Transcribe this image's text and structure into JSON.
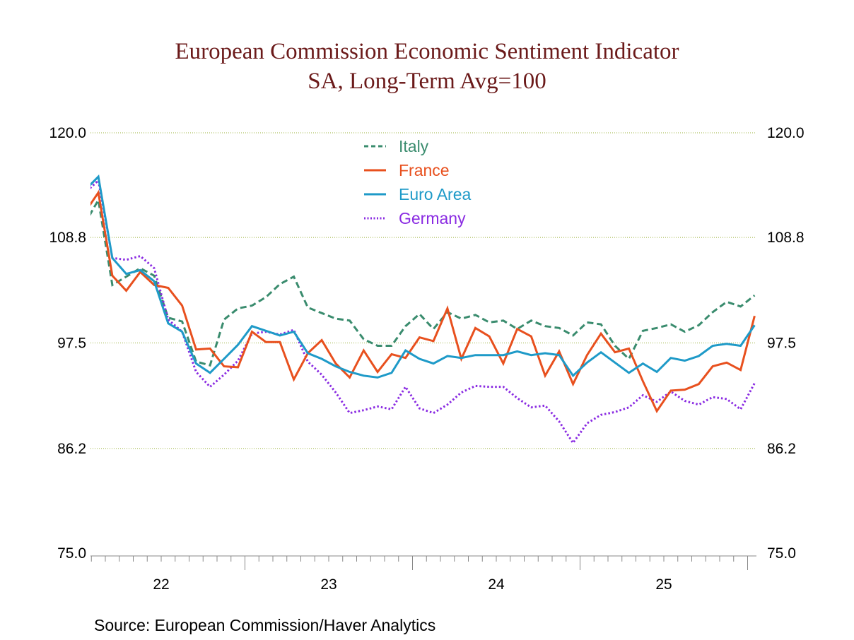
{
  "chart_data": {
    "type": "line",
    "title": "European Commission Economic Sentiment Indicator",
    "subtitle": "SA, Long-Term Avg=100",
    "xlabel": "",
    "ylabel": "",
    "ylim": [
      75.0,
      120.0
    ],
    "yticks": [
      "75.0",
      "86.2",
      "97.5",
      "108.8",
      "120.0"
    ],
    "xticks": [
      "22",
      "23",
      "24",
      "25"
    ],
    "grid": true,
    "legend_position": "top-center",
    "x": [
      "2022-01",
      "2022-02",
      "2022-03",
      "2022-04",
      "2022-05",
      "2022-06",
      "2022-07",
      "2022-08",
      "2022-09",
      "2022-10",
      "2022-11",
      "2022-12",
      "2023-01",
      "2023-02",
      "2023-03",
      "2023-04",
      "2023-05",
      "2023-06",
      "2023-07",
      "2023-08",
      "2023-09",
      "2023-10",
      "2023-11",
      "2023-12",
      "2024-01",
      "2024-02",
      "2024-03",
      "2024-04",
      "2024-05",
      "2024-06",
      "2024-07",
      "2024-08",
      "2024-09",
      "2024-10",
      "2024-11",
      "2024-12",
      "2025-01",
      "2025-02",
      "2025-03",
      "2025-04",
      "2025-05",
      "2025-06",
      "2025-07",
      "2025-08",
      "2025-09",
      "2025-10",
      "2025-11",
      "2025-12",
      "2026-01"
    ],
    "series": [
      {
        "name": "Italy",
        "color": "#3a8c6e",
        "style": "dashed",
        "values": [
          110.2,
          112.8,
          103.7,
          104.6,
          105.5,
          104.7,
          100.2,
          99.8,
          95.5,
          95.1,
          100.0,
          101.2,
          101.5,
          102.4,
          103.8,
          104.6,
          101.3,
          100.7,
          100.1,
          99.9,
          97.9,
          97.2,
          97.2,
          99.3,
          100.6,
          99.0,
          100.8,
          100.1,
          100.5,
          99.7,
          99.9,
          99.0,
          99.9,
          99.3,
          99.1,
          98.3,
          99.7,
          99.5,
          97.2,
          95.8,
          98.8,
          99.1,
          99.5,
          98.7,
          99.4,
          100.8,
          101.9,
          101.4,
          102.6
        ]
      },
      {
        "name": "France",
        "color": "#e8501e",
        "style": "solid",
        "values": [
          111.4,
          113.6,
          104.7,
          103.1,
          105.1,
          103.7,
          103.4,
          101.5,
          96.8,
          96.9,
          95.0,
          94.9,
          98.7,
          97.6,
          97.6,
          93.6,
          96.4,
          97.8,
          95.3,
          93.8,
          96.7,
          94.4,
          96.3,
          95.9,
          98.1,
          97.7,
          101.2,
          95.8,
          99.1,
          98.2,
          95.3,
          99.0,
          98.2,
          94.0,
          96.6,
          93.1,
          96.2,
          98.5,
          96.5,
          96.9,
          93.4,
          90.2,
          92.4,
          92.5,
          93.1,
          95.0,
          95.4,
          94.6,
          100.4
        ]
      },
      {
        "name": "Euro Area",
        "color": "#1e9ac8",
        "style": "solid",
        "values": [
          113.8,
          115.3,
          106.6,
          104.9,
          105.3,
          104.1,
          99.6,
          98.7,
          95.3,
          94.3,
          95.8,
          97.3,
          99.3,
          98.8,
          98.3,
          98.7,
          96.4,
          95.8,
          95.0,
          94.4,
          94.0,
          93.8,
          94.3,
          96.7,
          95.8,
          95.3,
          96.1,
          95.9,
          96.2,
          96.2,
          96.2,
          96.6,
          96.2,
          96.4,
          96.2,
          94.0,
          95.4,
          96.5,
          95.4,
          94.3,
          95.3,
          94.4,
          95.9,
          95.6,
          96.1,
          97.2,
          97.4,
          97.2,
          99.4
        ]
      },
      {
        "name": "Germany",
        "color": "#8a2be2",
        "style": "dotted",
        "values": [
          113.5,
          114.9,
          106.6,
          106.4,
          106.8,
          105.5,
          100.0,
          98.7,
          94.4,
          92.8,
          94.1,
          95.6,
          98.5,
          98.7,
          98.4,
          98.9,
          95.5,
          94.1,
          92.2,
          90.0,
          90.3,
          90.7,
          90.4,
          92.8,
          90.5,
          90.0,
          90.9,
          92.2,
          92.9,
          92.8,
          92.8,
          91.6,
          90.6,
          90.8,
          89.1,
          86.8,
          88.9,
          89.8,
          90.1,
          90.6,
          91.9,
          91.2,
          92.3,
          91.3,
          90.9,
          91.7,
          91.5,
          90.4,
          93.2
        ]
      }
    ]
  },
  "source": "Source:  European Commission/Haver Analytics"
}
